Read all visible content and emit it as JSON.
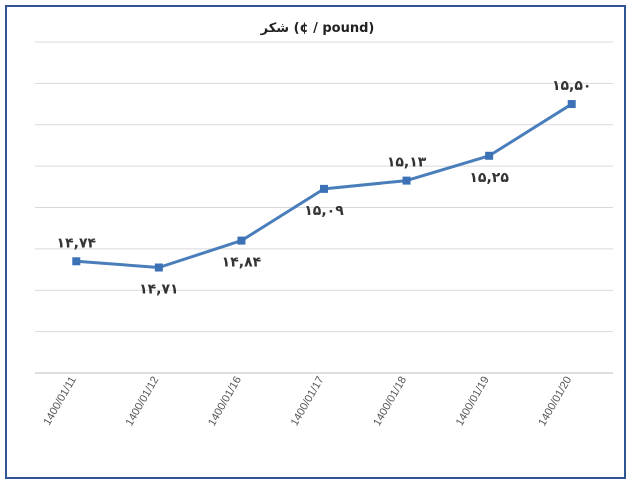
{
  "chart_data": {
    "type": "line",
    "title": "شکر   (¢ / pound)",
    "xlabel": "",
    "ylabel": "",
    "categories": [
      "1400/01/11",
      "1400/01/12",
      "1400/01/16",
      "1400/01/17",
      "1400/01/18",
      "1400/01/19",
      "1400/01/20"
    ],
    "series": [
      {
        "values": [
          14.74,
          14.71,
          14.84,
          15.09,
          15.13,
          15.25,
          15.5
        ],
        "labels": [
          "۱۴,۷۴",
          "۱۴,۷۱",
          "۱۴,۸۴",
          "۱۵,۰۹",
          "۱۵,۱۳",
          "۱۵,۲۵",
          "۱۵,۵۰"
        ],
        "label_positions": [
          "above",
          "below",
          "below",
          "below",
          "above",
          "below",
          "above"
        ]
      }
    ],
    "ylim": [
      14.2,
      15.8
    ],
    "y_axis_visible": false,
    "grid": true,
    "grid_lines": 8,
    "colors": {
      "line": "#4a7ebb",
      "marker": "#3d71b5",
      "grid": "#d9d9d9",
      "border": "#2f5597"
    }
  }
}
